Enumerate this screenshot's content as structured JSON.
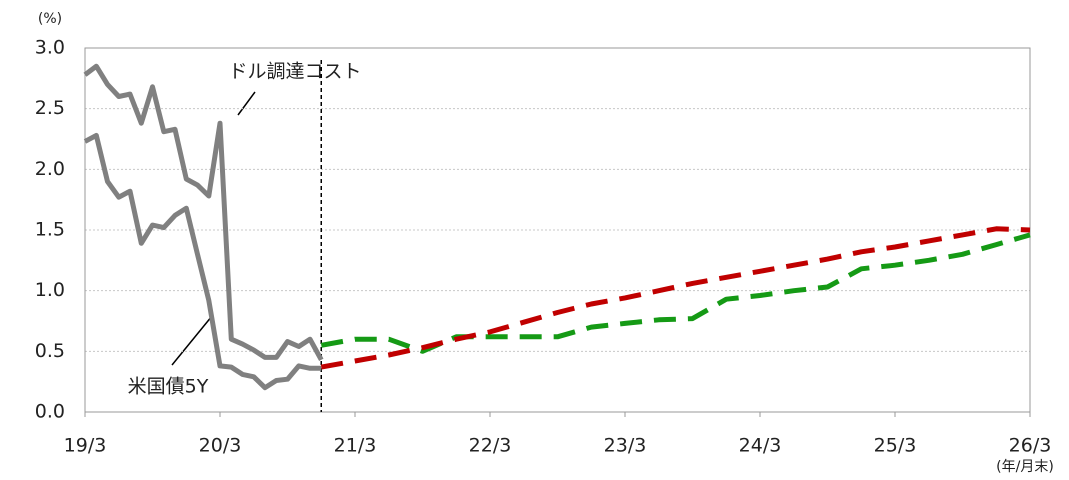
{
  "chart_data": {
    "type": "line",
    "y_unit_label": "(%)",
    "x_unit_label": "(年/月末)",
    "annotations": [
      "ドル調達コスト",
      "米国債5Y"
    ],
    "divider_x": "2020-12",
    "xlim": [
      "2019-03",
      "2026-03"
    ],
    "xticks": [
      {
        "value": "2019-03",
        "label": "19/3"
      },
      {
        "value": "2020-03",
        "label": "20/3"
      },
      {
        "value": "2021-03",
        "label": "21/3"
      },
      {
        "value": "2022-03",
        "label": "22/3"
      },
      {
        "value": "2023-03",
        "label": "23/3"
      },
      {
        "value": "2024-03",
        "label": "24/3"
      },
      {
        "value": "2025-03",
        "label": "25/3"
      },
      {
        "value": "2026-03",
        "label": "26/3"
      }
    ],
    "ylim": [
      0,
      3
    ],
    "yticks": [
      {
        "value": 0,
        "label": "0.0"
      },
      0.5,
      {
        "value": 1,
        "label": "1.0"
      },
      1.5,
      {
        "value": 2,
        "label": "2.0"
      },
      2.5,
      {
        "value": 3,
        "label": "3.0"
      }
    ],
    "grid": true,
    "series": [
      {
        "color": "#808080",
        "dash": false,
        "x": [
          "2019-03",
          "2019-04",
          "2019-05",
          "2019-06",
          "2019-07",
          "2019-08",
          "2019-09",
          "2019-10",
          "2019-11",
          "2019-12",
          "2020-01",
          "2020-02",
          "2020-03",
          "2020-04",
          "2020-05",
          "2020-06",
          "2020-07",
          "2020-08",
          "2020-09",
          "2020-10",
          "2020-11",
          "2020-12"
        ],
        "values": [
          2.78,
          2.85,
          2.7,
          2.6,
          2.62,
          2.38,
          2.68,
          2.31,
          2.33,
          1.92,
          1.87,
          1.78,
          2.38,
          0.6,
          0.56,
          0.51,
          0.45,
          0.45,
          0.58,
          0.54,
          0.6,
          0.43
        ]
      },
      {
        "color": "#808080",
        "dash": false,
        "x": [
          "2019-03",
          "2019-04",
          "2019-05",
          "2019-06",
          "2019-07",
          "2019-08",
          "2019-09",
          "2019-10",
          "2019-11",
          "2019-12",
          "2020-01",
          "2020-02",
          "2020-03",
          "2020-04",
          "2020-05",
          "2020-06",
          "2020-07",
          "2020-08",
          "2020-09",
          "2020-10",
          "2020-11",
          "2020-12"
        ],
        "values": [
          2.23,
          2.28,
          1.9,
          1.77,
          1.82,
          1.39,
          1.54,
          1.52,
          1.62,
          1.68,
          1.3,
          0.92,
          0.38,
          0.37,
          0.31,
          0.29,
          0.2,
          0.26,
          0.27,
          0.38,
          0.36,
          0.36
        ]
      },
      {
        "color": "#159a15",
        "dash": true,
        "x": [
          "2020-12",
          "2021-03",
          "2021-06",
          "2021-09",
          "2021-12",
          "2022-03",
          "2022-06",
          "2022-09",
          "2022-12",
          "2023-03",
          "2023-06",
          "2023-09",
          "2023-12",
          "2024-03",
          "2024-06",
          "2024-09",
          "2024-12",
          "2025-03",
          "2025-06",
          "2025-09",
          "2025-12",
          "2026-03"
        ],
        "values": [
          0.55,
          0.6,
          0.6,
          0.5,
          0.62,
          0.62,
          0.62,
          0.62,
          0.7,
          0.73,
          0.76,
          0.77,
          0.93,
          0.96,
          1.0,
          1.03,
          1.18,
          1.21,
          1.25,
          1.3,
          1.38,
          1.46
        ]
      },
      {
        "color": "#c00000",
        "dash": true,
        "x": [
          "2020-12",
          "2021-03",
          "2021-06",
          "2021-09",
          "2021-12",
          "2022-03",
          "2022-06",
          "2022-09",
          "2022-12",
          "2023-03",
          "2023-06",
          "2023-09",
          "2023-12",
          "2024-03",
          "2024-06",
          "2024-09",
          "2024-12",
          "2025-03",
          "2025-06",
          "2025-09",
          "2025-12",
          "2026-03"
        ],
        "values": [
          0.37,
          0.42,
          0.47,
          0.53,
          0.6,
          0.66,
          0.74,
          0.82,
          0.89,
          0.94,
          1.0,
          1.06,
          1.11,
          1.16,
          1.21,
          1.26,
          1.32,
          1.36,
          1.41,
          1.46,
          1.51,
          1.5
        ]
      }
    ]
  }
}
